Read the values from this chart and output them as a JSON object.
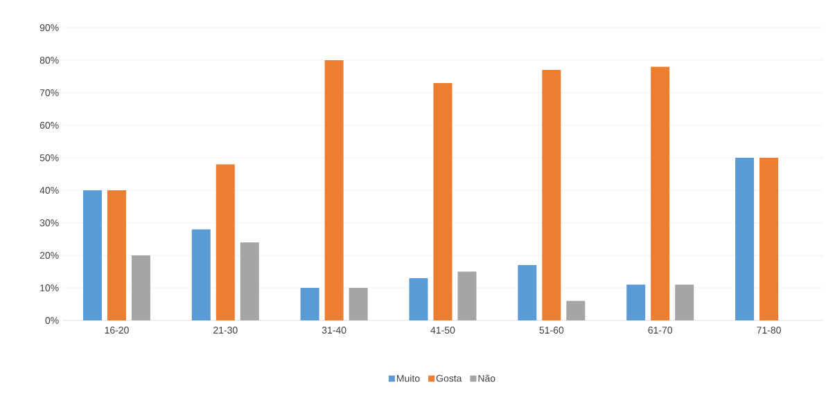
{
  "chart_data": {
    "type": "bar",
    "categories": [
      "16-20",
      "21-30",
      "31-40",
      "41-50",
      "51-60",
      "61-70",
      "71-80"
    ],
    "series": [
      {
        "name": "Muito",
        "color": "#5b9bd5",
        "values": [
          40,
          28,
          10,
          13,
          17,
          11,
          50
        ]
      },
      {
        "name": "Gosta",
        "color": "#ed7d31",
        "values": [
          40,
          48,
          80,
          73,
          77,
          78,
          50
        ]
      },
      {
        "name": "Não",
        "color": "#a5a5a5",
        "values": [
          20,
          24,
          10,
          15,
          6,
          11,
          null
        ]
      }
    ],
    "ylim": [
      0,
      90
    ],
    "yticks": [
      {
        "value": 0,
        "label": "0%"
      },
      {
        "value": 10,
        "label": "10%"
      },
      {
        "value": 20,
        "label": "20%"
      },
      {
        "value": 30,
        "label": "30%"
      },
      {
        "value": 40,
        "label": "40%"
      },
      {
        "value": 50,
        "label": "50%"
      },
      {
        "value": 60,
        "label": "60%"
      },
      {
        "value": 70,
        "label": "70%"
      },
      {
        "value": 80,
        "label": "80%"
      },
      {
        "value": 90,
        "label": "90%"
      }
    ],
    "grid": "y",
    "legend": "bottom"
  }
}
